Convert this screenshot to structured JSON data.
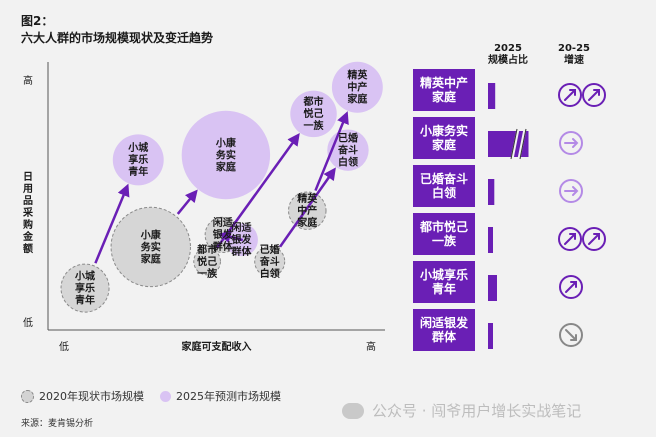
{
  "figure": {
    "label": "图2：",
    "title": "六大人群的市场规模现状及变迁趋势"
  },
  "chart_data": {
    "type": "scatter",
    "xlabel": "家庭可支配收入",
    "ylabel": "日用品采购金额",
    "x_low": "低",
    "x_high": "高",
    "y_low": "低",
    "y_high": "高",
    "legend": [
      {
        "label": "2020年现状市场规模",
        "color": "#d3d3d3",
        "style": "dashed"
      },
      {
        "label": "2025年预测市场规模",
        "color": "#d9c3f3",
        "style": "solid"
      }
    ],
    "groups": [
      {
        "name": "小城享乐青年",
        "current": {
          "x": 0.08,
          "y": 0.14,
          "size": 0.12
        },
        "forecast": {
          "x": 0.25,
          "y": 0.67,
          "size": 0.14
        }
      },
      {
        "name": "小康务实家庭",
        "current": {
          "x": 0.29,
          "y": 0.31,
          "size": 0.42
        },
        "forecast": {
          "x": 0.53,
          "y": 0.69,
          "size": 0.54
        }
      },
      {
        "name": "闲适银发群体",
        "current": {
          "x": 0.52,
          "y": 0.36,
          "size": 0.05
        },
        "forecast": {
          "x": 0.58,
          "y": 0.34,
          "size": 0.04
        }
      },
      {
        "name": "都市悦己一族",
        "current": {
          "x": 0.47,
          "y": 0.25,
          "size": 0.02
        },
        "forecast": {
          "x": 0.81,
          "y": 0.86,
          "size": 0.11
        }
      },
      {
        "name": "已婚奋斗白领",
        "current": {
          "x": 0.67,
          "y": 0.25,
          "size": 0.03
        },
        "forecast": {
          "x": 0.92,
          "y": 0.71,
          "size": 0.08
        }
      },
      {
        "name": "精英中产家庭",
        "current": {
          "x": 0.79,
          "y": 0.46,
          "size": 0.06
        },
        "forecast": {
          "x": 0.95,
          "y": 0.97,
          "size": 0.14
        }
      }
    ],
    "side_table": {
      "col_share": [
        "2025",
        "规模占比"
      ],
      "col_growth": [
        "20-25",
        "增速"
      ],
      "rows": [
        {
          "label": "精英中产\n家庭",
          "share": 0.08,
          "broken": false,
          "growth": "up",
          "growth_count": 2
        },
        {
          "label": "小康务实\n家庭",
          "share": 0.45,
          "broken": true,
          "growth": "flat",
          "growth_count": 1
        },
        {
          "label": "已婚奋斗\n白领",
          "share": 0.07,
          "broken": false,
          "growth": "flat",
          "growth_count": 1
        },
        {
          "label": "都市悦己\n一族",
          "share": 0.04,
          "broken": false,
          "growth": "up",
          "growth_count": 2
        },
        {
          "label": "小城享乐\n青年",
          "share": 0.1,
          "broken": false,
          "growth": "up",
          "growth_count": 1
        },
        {
          "label": "闲适银发\n群体",
          "share": 0.03,
          "broken": false,
          "growth": "down",
          "growth_count": 1
        }
      ]
    }
  },
  "source": "来源：麦肯锡分析",
  "watermark": "公众号 · 闯爷用户增长实战笔记",
  "colors": {
    "accent": "#6a1fb5",
    "light": "#d9c3f3",
    "gray": "#d3d3d3"
  }
}
